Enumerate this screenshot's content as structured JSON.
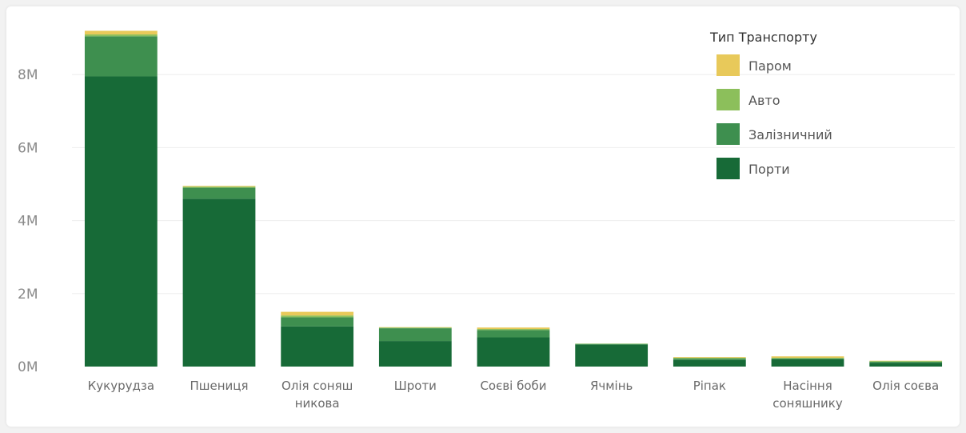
{
  "chart_data": {
    "type": "bar",
    "stacked": true,
    "categories": [
      [
        "Кукурудза"
      ],
      [
        "Пшениця"
      ],
      [
        "Олія соняш",
        "никова"
      ],
      [
        "Шроти"
      ],
      [
        "Соєві боби"
      ],
      [
        "Ячмінь"
      ],
      [
        "Ріпак"
      ],
      [
        "Насіння",
        "соняшнику"
      ],
      [
        "Олія соєва"
      ]
    ],
    "series": [
      {
        "name": "Порти",
        "color": "#176a37",
        "values": [
          7.95,
          4.6,
          1.1,
          0.7,
          0.8,
          0.6,
          0.18,
          0.2,
          0.1
        ]
      },
      {
        "name": "Залізничний",
        "color": "#3e8f4f",
        "values": [
          1.1,
          0.3,
          0.25,
          0.35,
          0.2,
          0.02,
          0.04,
          0.02,
          0.03
        ]
      },
      {
        "name": "Авто",
        "color": "#8cbf5b",
        "values": [
          0.05,
          0.03,
          0.05,
          0.02,
          0.03,
          0.01,
          0.02,
          0.02,
          0.02
        ]
      },
      {
        "name": "Паром",
        "color": "#e8c95a",
        "values": [
          0.1,
          0.02,
          0.1,
          0.01,
          0.04,
          0.0,
          0.02,
          0.04,
          0.01
        ]
      }
    ],
    "yticks": [
      {
        "value": 0,
        "label": "0M"
      },
      {
        "value": 2,
        "label": "2M"
      },
      {
        "value": 4,
        "label": "4M"
      },
      {
        "value": 6,
        "label": "6M"
      },
      {
        "value": 8,
        "label": "8M"
      }
    ],
    "ylim": [
      0,
      9.3
    ],
    "grid": true,
    "legend": {
      "title": "Тип Транспорту",
      "placement": "top-right",
      "order": [
        "Паром",
        "Авто",
        "Залізничний",
        "Порти"
      ]
    }
  }
}
